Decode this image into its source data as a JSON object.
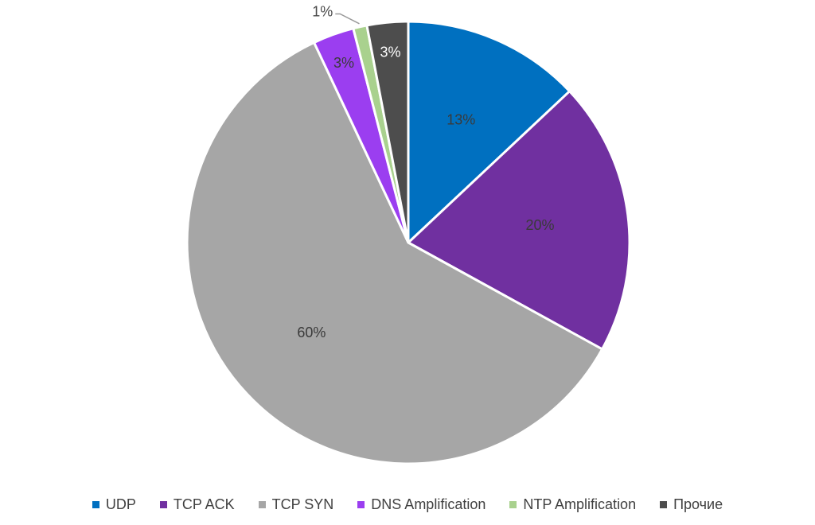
{
  "chart_data": {
    "type": "pie",
    "title": "",
    "categories": [
      "UDP",
      "TCP ACK",
      "TCP SYN",
      "DNS Amplification",
      "NTP Amplification",
      "Прочие"
    ],
    "values": [
      13,
      20,
      60,
      3,
      1,
      3
    ],
    "labels": [
      "13%",
      "20%",
      "60%",
      "3%",
      "1%",
      "3%"
    ],
    "colors": [
      "#0070c0",
      "#7030a0",
      "#a6a6a6",
      "#9b3ef0",
      "#a9d18e",
      "#4d4d4d"
    ],
    "start_angle_deg": 0,
    "direction": "clockwise",
    "legend_position": "bottom"
  }
}
